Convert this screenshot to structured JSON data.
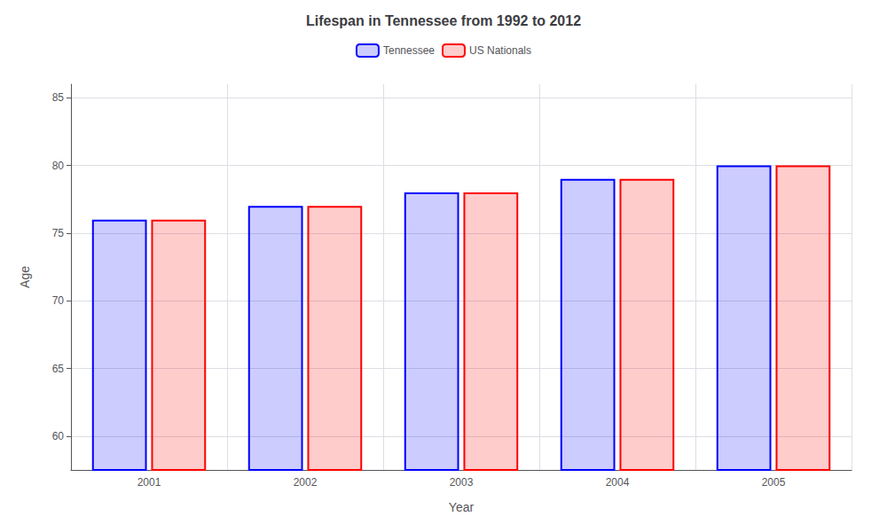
{
  "chart_data": {
    "type": "bar",
    "title": "Lifespan in Tennessee from 1992 to 2012",
    "xlabel": "Year",
    "ylabel": "Age",
    "categories": [
      "2001",
      "2002",
      "2003",
      "2004",
      "2005"
    ],
    "series": [
      {
        "name": "Tennessee",
        "color": "#0000ff",
        "values": [
          76,
          77,
          78,
          79,
          80
        ]
      },
      {
        "name": "US Nationals",
        "color": "#ff0000",
        "values": [
          76,
          77,
          78,
          79,
          80
        ]
      }
    ],
    "ylim": [
      57.5,
      86
    ],
    "yticks": [
      60,
      65,
      70,
      75,
      80,
      85
    ],
    "grid": true,
    "legend": "top"
  }
}
